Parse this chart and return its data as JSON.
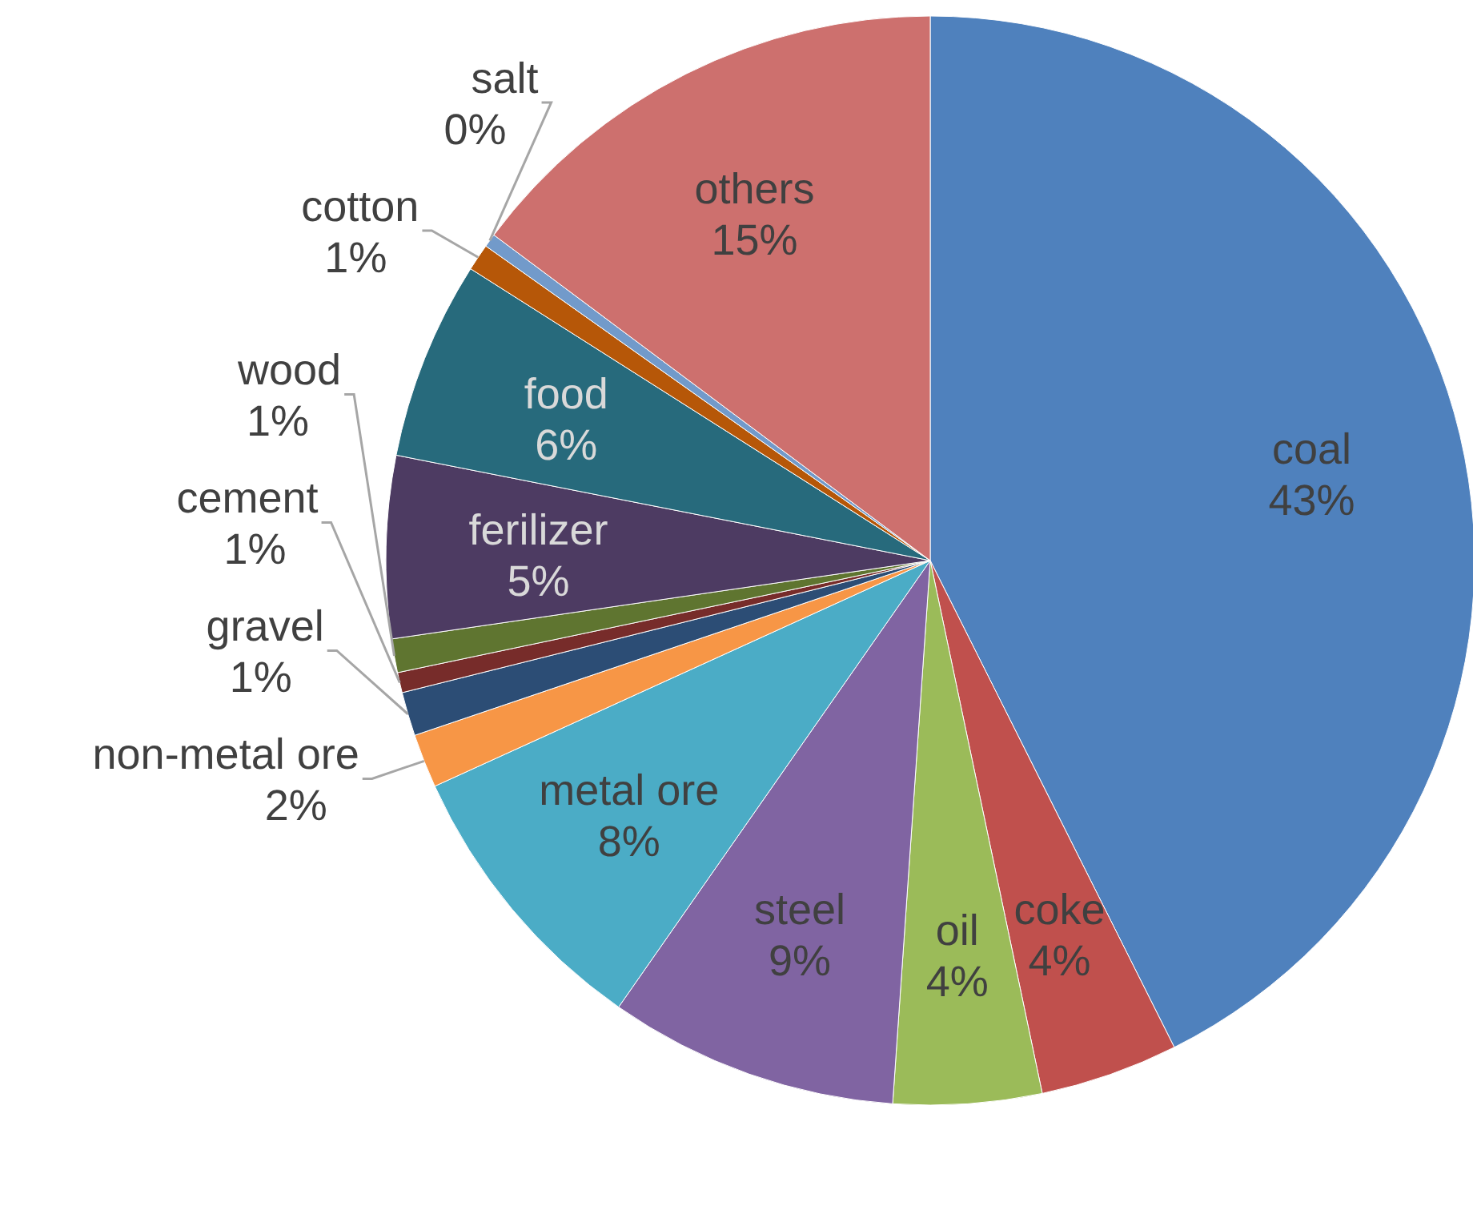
{
  "chart_data": {
    "type": "pie",
    "categories": [
      "coal",
      "coke",
      "oil",
      "steel",
      "metal ore",
      "non-metal ore",
      "gravel",
      "cement",
      "wood",
      "ferilizer",
      "food",
      "cotton",
      "salt",
      "others"
    ],
    "values": [
      42.6,
      4.1,
      4.4,
      8.6,
      8.5,
      1.6,
      1.3,
      0.6,
      1.0,
      5.4,
      5.9,
      0.8,
      0.4,
      14.8
    ],
    "value_labels": [
      "43%",
      "4%",
      "4%",
      "9%",
      "8%",
      "2%",
      "1%",
      "1%",
      "1%",
      "5%",
      "6%",
      "1%",
      "0%",
      "15%"
    ],
    "colors": [
      "#4f81bd",
      "#c0504d",
      "#9bbb59",
      "#8064a2",
      "#4bacc6",
      "#f79646",
      "#2c4d75",
      "#772c2a",
      "#5f7530",
      "#4d3b62",
      "#276a7c",
      "#b65708",
      "#729aca",
      "#cd706e"
    ]
  }
}
